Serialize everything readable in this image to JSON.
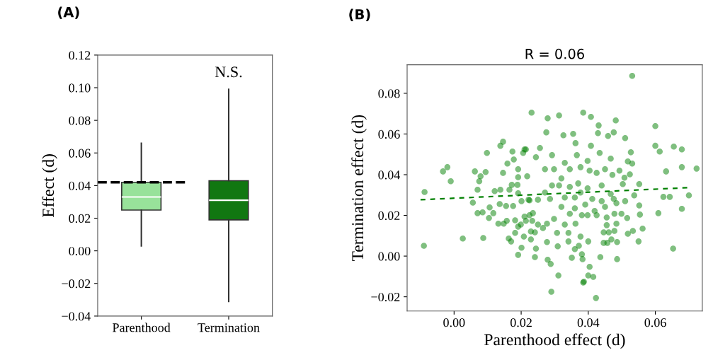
{
  "chart_data": [
    {
      "type": "box",
      "annotations": [
        "(A)",
        "N.S."
      ],
      "ylabel": "Effect (d)",
      "categories": [
        "Parenthood",
        "Termination"
      ],
      "colors": [
        "#98e29a",
        "#117711"
      ],
      "boxes": [
        {
          "low": 0.003,
          "q1": 0.025,
          "median": 0.033,
          "q3": 0.042,
          "high": 0.066
        },
        {
          "low": -0.031,
          "q1": 0.019,
          "median": 0.031,
          "q3": 0.043,
          "high": 0.099
        }
      ],
      "ylim": [
        -0.04,
        0.12
      ],
      "yticks": [
        {
          "value": -0.04,
          "label": "−0.04"
        },
        {
          "value": -0.02,
          "label": "−0.02"
        },
        {
          "value": 0,
          "label": "0.00"
        },
        {
          "value": 0.02,
          "label": "0.02"
        },
        {
          "value": 0.04,
          "label": "0.04"
        },
        {
          "value": 0.06,
          "label": "0.06"
        },
        {
          "value": 0.08,
          "label": "0.08"
        },
        {
          "value": 0.1,
          "label": "0.10"
        },
        {
          "value": 0.12,
          "label": "0.12"
        }
      ],
      "ref_lines": [
        {
          "axis": "y",
          "value": 0.042,
          "color": "#000000",
          "line_style": "dashed"
        }
      ],
      "grid": false,
      "legend": false
    },
    {
      "type": "scatter",
      "title": "R = 0.06",
      "annotations": [
        "(B)"
      ],
      "xlabel": "Parenthood effect (d)",
      "ylabel": "Termination effect (d)",
      "marker": "circle",
      "grid": false,
      "legend": false,
      "xlim": [
        -0.014,
        0.074
      ],
      "xticks": [
        {
          "value": 0,
          "label": "0.00"
        },
        {
          "value": 0.02,
          "label": "0.02"
        },
        {
          "value": 0.04,
          "label": "0.04"
        },
        {
          "value": 0.06,
          "label": "0.06"
        }
      ],
      "ylim": [
        -0.027,
        0.094
      ],
      "yticks": [
        {
          "value": -0.02,
          "label": "−0.02"
        },
        {
          "value": 0,
          "label": "0.00"
        },
        {
          "value": 0.02,
          "label": "0.02"
        },
        {
          "value": 0.04,
          "label": "0.04"
        },
        {
          "value": 0.06,
          "label": "0.06"
        },
        {
          "value": 0.08,
          "label": "0.08"
        }
      ],
      "series": [
        {
          "type": "scatter",
          "color": "#008000",
          "x": [
            -0.0033,
            -0.002,
            -0.001,
            0.0062,
            0.0094,
            0.0079,
            0.0098,
            0.0138,
            0.0146,
            0.0146,
            0.0159,
            0.0174,
            0.0178,
            0.0191,
            0.0206,
            0.021,
            0.0231,
            0.0191,
            0.0531,
            0.0279,
            0.0313,
            0.0385,
            0.0408,
            0.0431,
            0.0482,
            0.06,
            0.0429,
            0.0476,
            0.0355,
            0.0326,
            0.0275,
            0.051,
            0.0459,
            0.06,
            0.0613,
            0.0655,
            0.0679,
            0.0679,
            0.0723,
            0.0632,
            0.0527,
            0.0531,
            0.0518,
            0.0493,
            0.0524,
            0.0508,
            0.0362,
            0.0408,
            0.0366,
            0.0434,
            0.0467,
            0.0398,
            0.033,
            0.0292,
            0.0256,
            0.0214,
            0.0244,
            0.0298,
            0.0345,
            0.0404,
            0.045,
            0.0377,
            0.0271,
            0.0218,
            0.032,
            0.0425,
            0.0472,
            -0.0088,
            -0.009,
            0.0026,
            0.0087,
            0.0056,
            0.007,
            0.0085,
            0.0104,
            0.0117,
            0.0106,
            0.0121,
            0.0138,
            0.007,
            0.0075,
            0.0136,
            0.0155,
            0.0172,
            0.0189,
            0.0165,
            0.0191,
            0.0201,
            0.0225,
            0.0176,
            0.0132,
            0.0148,
            0.0157,
            0.0182,
            0.0199,
            0.0191,
            0.0182,
            0.0163,
            0.017,
            0.0208,
            0.0229,
            0.0201,
            0.0191,
            0.0241,
            0.0244,
            0.0241,
            0.021,
            0.0225,
            0.0235,
            0.0233,
            0.0222,
            0.0214,
            0.0229,
            0.0279,
            0.0288,
            0.0277,
            0.0311,
            0.029,
            0.0309,
            0.0341,
            0.0341,
            0.0362,
            0.036,
            0.0372,
            0.0381,
            0.0351,
            0.0383,
            0.04,
            0.0404,
            0.04,
            0.0415,
            0.0387,
            0.0423,
            0.0436,
            0.0486,
            0.0446,
            0.0457,
            0.0446,
            0.0461,
            0.0469,
            0.0486,
            0.0478,
            0.0484,
            0.0455,
            0.0455,
            0.0478,
            0.0499,
            0.0516,
            0.0484,
            0.051,
            0.0537,
            0.0552,
            0.0554,
            0.0562,
            0.0533,
            0.0518,
            0.055,
            0.0609,
            0.0624,
            0.0643,
            0.0679,
            0.07,
            0.0653,
            0.0552,
            0.0503,
            0.044,
            0.0419,
            0.0425,
            0.0398,
            0.0381,
            0.0345,
            0.032,
            0.0298,
            0.0277,
            0.0265,
            0.025,
            0.0307,
            0.033,
            0.0377,
            0.036,
            0.0391,
            0.0412,
            0.044,
            0.045,
            0.0398,
            0.037,
            0.0345,
            0.0313,
            0.0292,
            0.0271,
            0.025,
            0.0286,
            0.033,
            0.036,
            0.0377,
            0.0467,
            0.0476,
            0.0385
          ],
          "values": [
            0.0416,
            0.0437,
            0.0368,
            0.0416,
            0.0413,
            0.0392,
            0.0507,
            0.0542,
            0.0562,
            0.0409,
            0.0455,
            0.0514,
            0.0475,
            0.0427,
            0.0507,
            0.0524,
            0.0705,
            0.0388,
            0.0886,
            0.0677,
            0.0691,
            0.0705,
            0.0684,
            0.0642,
            0.0667,
            0.0639,
            0.0604,
            0.0608,
            0.0601,
            0.0594,
            0.0608,
            0.058,
            0.059,
            0.0542,
            0.0514,
            0.0538,
            0.0524,
            0.0437,
            0.043,
            0.0416,
            0.051,
            0.0455,
            0.0465,
            0.042,
            0.0402,
            0.0385,
            0.0555,
            0.0542,
            0.0496,
            0.0507,
            0.0479,
            0.0468,
            0.0458,
            0.0496,
            0.0531,
            0.0524,
            0.0486,
            0.0427,
            0.0427,
            0.042,
            0.0427,
            0.0437,
            0.0427,
            0.0392,
            0.0382,
            0.0409,
            0.0399,
            0.0315,
            0.0051,
            0.0086,
            0.0089,
            0.0263,
            0.0211,
            0.0215,
            0.0187,
            0.0211,
            0.0239,
            0.0319,
            0.0326,
            0.0326,
            0.0368,
            0.0256,
            0.0246,
            0.035,
            0.035,
            0.0326,
            0.0309,
            0.027,
            0.0274,
            0.0246,
            0.0159,
            0.0159,
            0.0173,
            0.0176,
            0.0155,
            0.0145,
            0.0114,
            0.0086,
            0.0072,
            0.0096,
            0.0082,
            0.0041,
            0.0006,
            0.0117,
            0.0037,
            -0.0005,
            0.0194,
            0.0201,
            0.0211,
            0.0173,
            0.0277,
            0.0173,
            0.0121,
            -0.0018,
            -0.0039,
            0.0069,
            -0.0095,
            -0.0175,
            0.0048,
            0.0072,
            0.0114,
            0.0159,
            0.0034,
            0.0051,
            0.0009,
            -0.0008,
            -0.0015,
            0.0072,
            -0.0053,
            -0.0095,
            -0.0102,
            -0.0126,
            -0.0206,
            -0.0005,
            -0.0015,
            0.0065,
            0.0065,
            0.0117,
            0.0117,
            0.0082,
            0.0069,
            0.0124,
            0.0159,
            0.0152,
            0.019,
            0.0208,
            0.0208,
            0.0187,
            0.026,
            0.027,
            0.0298,
            0.0249,
            0.0204,
            0.0135,
            0.0124,
            0.011,
            0.0072,
            0.0211,
            0.0291,
            0.0291,
            0.0232,
            0.0298,
            0.0037,
            0.0354,
            0.0354,
            0.0347,
            0.0222,
            0.0201,
            0.0201,
            0.0201,
            0.0208,
            0.0242,
            0.0183,
            0.0159,
            0.0138,
            0.0155,
            0.0114,
            0.0155,
            0.0096,
            0.0235,
            0.0253,
            0.0281,
            0.027,
            0.0242,
            0.0333,
            0.0357,
            0.034,
            0.0347,
            0.0347,
            0.0312,
            0.0277,
            0.0281,
            0.0288,
            0.0288,
            0.0312,
            0.0305,
            0.0281,
            -0.013
          ]
        },
        {
          "type": "line",
          "color": "#008000",
          "line_style": "dashed",
          "marker": "none",
          "x": [
            -0.01,
            0.0695
          ],
          "values": [
            0.0277,
            0.0336
          ]
        }
      ]
    }
  ]
}
